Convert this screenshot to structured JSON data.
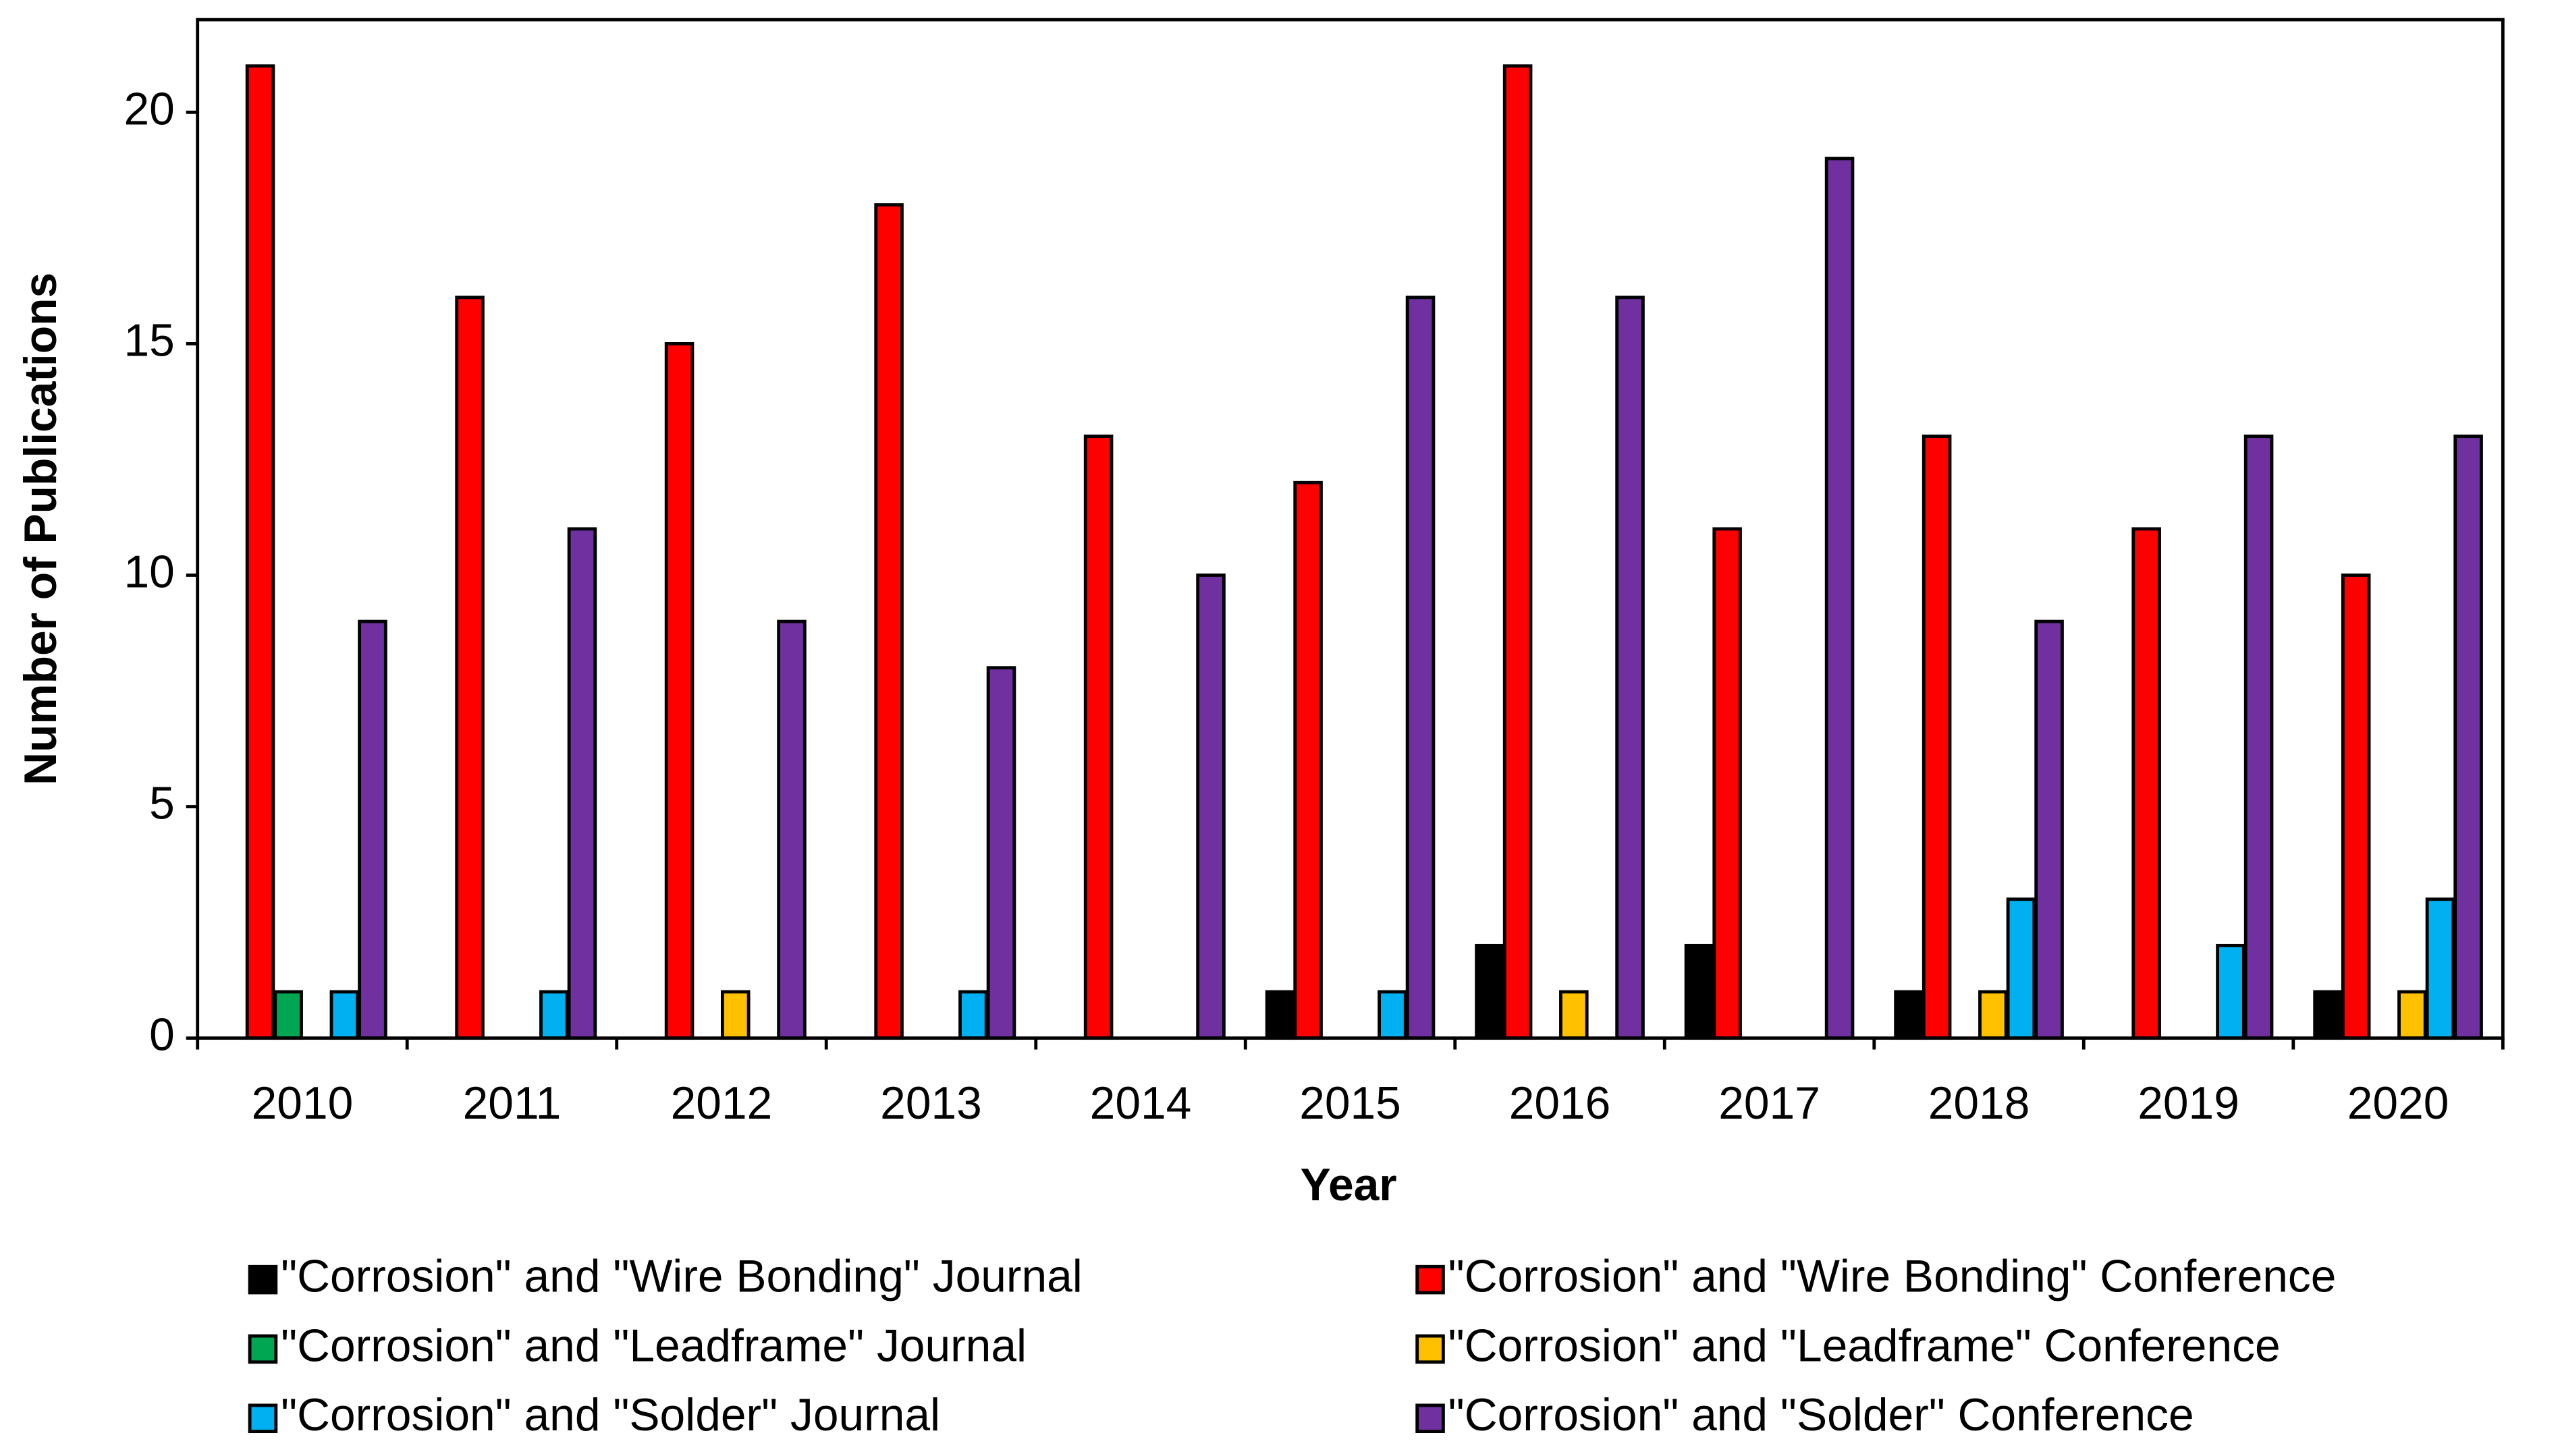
{
  "chart_data": {
    "type": "bar",
    "x_label": "Year",
    "y_label": "Number of Publications",
    "categories": [
      "2010",
      "2011",
      "2012",
      "2013",
      "2014",
      "2015",
      "2016",
      "2017",
      "2018",
      "2019",
      "2020"
    ],
    "series": [
      {
        "name": "\"Corrosion\" and \"Wire Bonding\" Journal",
        "color": "#000000",
        "values": [
          0,
          0,
          0,
          0,
          0,
          1,
          2,
          2,
          1,
          0,
          1
        ]
      },
      {
        "name": "\"Corrosion\" and \"Wire Bonding\" Conference",
        "color": "#ff0000",
        "values": [
          21,
          16,
          15,
          18,
          13,
          12,
          21,
          11,
          13,
          11,
          10
        ]
      },
      {
        "name": "\"Corrosion\" and \"Leadframe\" Journal",
        "color": "#00a651",
        "values": [
          1,
          0,
          0,
          0,
          0,
          0,
          0,
          0,
          0,
          0,
          0
        ]
      },
      {
        "name": "\"Corrosion\" and \"Leadframe\" Conference",
        "color": "#ffc000",
        "values": [
          0,
          0,
          1,
          0,
          0,
          0,
          1,
          0,
          1,
          0,
          1
        ]
      },
      {
        "name": "\"Corrosion\" and \"Solder\" Journal",
        "color": "#00b0f0",
        "values": [
          1,
          1,
          0,
          1,
          0,
          1,
          0,
          0,
          3,
          2,
          3
        ]
      },
      {
        "name": "\"Corrosion\" and \"Solder\" Conference",
        "color": "#7030a0",
        "values": [
          9,
          11,
          9,
          8,
          10,
          16,
          16,
          19,
          9,
          13,
          13
        ]
      }
    ],
    "ylim": [
      0,
      22
    ],
    "yticks": [
      0,
      5,
      10,
      15,
      20
    ],
    "grid": false,
    "legend": "bottom"
  }
}
